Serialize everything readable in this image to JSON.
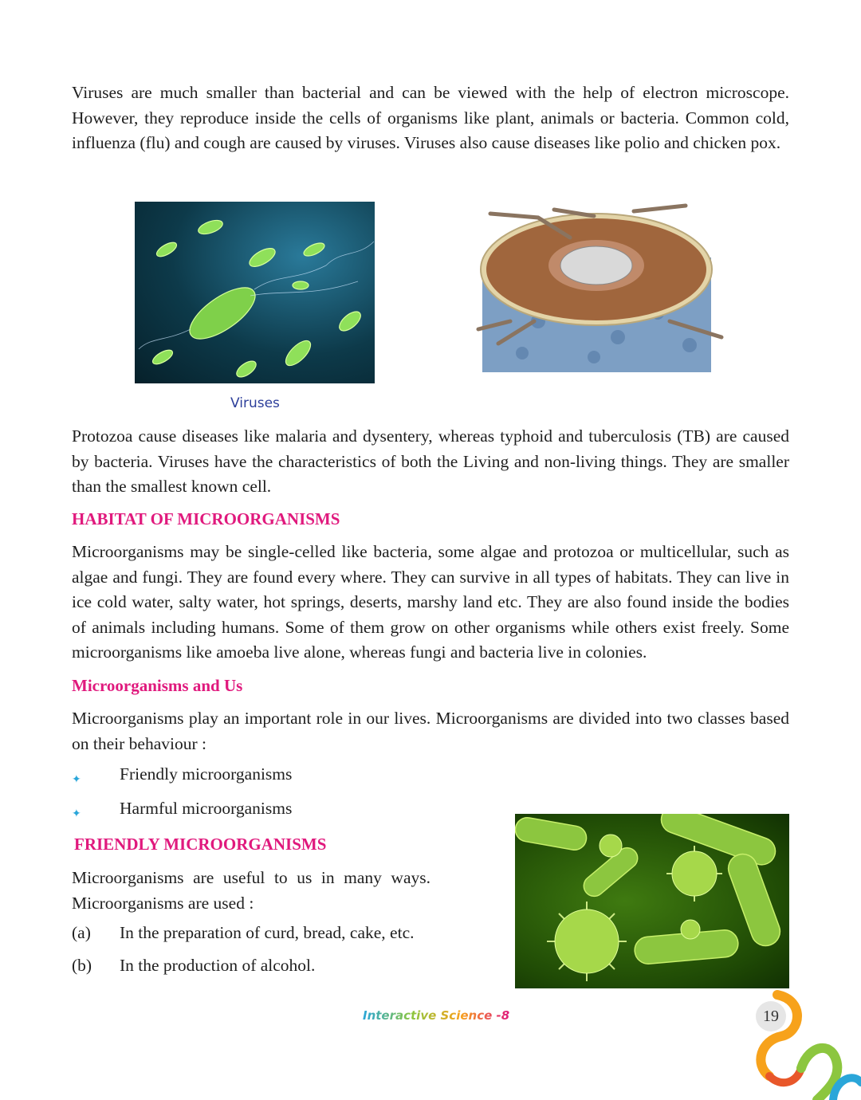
{
  "paragraphs": {
    "viruses_intro": "Viruses are much smaller than bacterial and can be viewed with the help of electron microscope. However, they reproduce inside the cells of organisms like plant, animals or bacteria. Common cold, influenza (flu)  and cough are caused by viruses. Viruses also cause diseases like polio and chicken pox.",
    "protozoa": "Protozoa cause diseases like malaria and dysentery, whereas typhoid and tuberculosis (TB) are caused by bacteria. Viruses have the characteristics of both the Living and non-living things. They are smaller than the smallest known cell.",
    "habitat": "Microorganisms may be single-celled like bacteria, some algae and protozoa or multicellular, such as algae and fungi. They are found every where. They can survive in all types of habitats. They can live in ice cold water, salty water, hot springs, deserts, marshy land etc. They are also found inside the bodies of animals including humans. Some of them grow on other organisms while others exist freely. Some microorganisms like amoeba live alone, whereas fungi and bacteria live in colonies.",
    "and_us": "Microorganisms play an important role in our lives. Microorganisms are divided into two classes based on their behaviour :",
    "friendly": "Microorganisms are useful to us in many ways. Microorganisms are used :"
  },
  "headings": {
    "habitat": "HABITAT OF MICROORGANISMS",
    "and_us": "Microorganisms and Us",
    "friendly": "FRIENDLY MICROORGANISMS"
  },
  "figures": {
    "caption_viruses": "Viruses"
  },
  "classes": [
    "Friendly microorganisms",
    "Harmful microorganisms"
  ],
  "uses": [
    {
      "mark": "(a)",
      "text": "In the preparation of curd, bread, cake, etc."
    },
    {
      "mark": "(b)",
      "text": "In the production of alcohol."
    }
  ],
  "footer": {
    "series": "Interactive Science -8",
    "page": "19"
  },
  "colors": {
    "heading": "#e0197d",
    "bullet": "#2aa6d9",
    "caption": "#2c3e9a"
  }
}
